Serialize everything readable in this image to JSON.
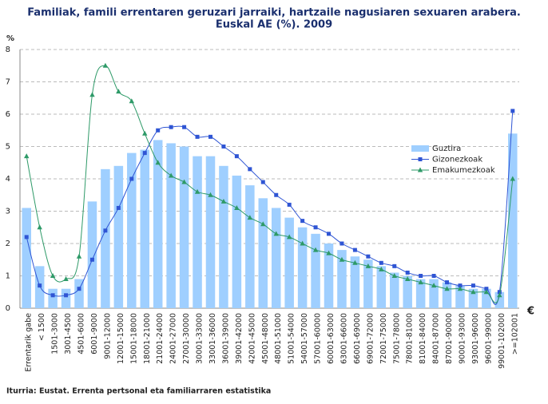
{
  "chart_data": {
    "type": "bar-line",
    "title": "Familiak, famili errentaren geruzari jarraiki, hartzaile nagusiaren sexuaren arabera.",
    "subtitle": "Euskal AE (%). 2009",
    "y_label": "%",
    "x_label": "€",
    "source": "Iturria: Eustat. Errenta pertsonal eta familiarraren estatistika",
    "categories": [
      "Errentarik gabe",
      "< 1500",
      "1501-3000",
      "3001-4500",
      "4501-6000",
      "6001-9000",
      "9001-12000",
      "12001-15000",
      "15001-18000",
      "18001-21000",
      "21001-24000",
      "24001-27000",
      "27001-30000",
      "30001-33000",
      "33001-36000",
      "36001-39000",
      "39001-42000",
      "42001-45000",
      "45001-48000",
      "48001-51000",
      "51001-54000",
      "54001-57000",
      "57001-60000",
      "60001-63000",
      "63001-66000",
      "66001-69000",
      "69001-72000",
      "72001-75000",
      "75001-78000",
      "78001-81000",
      "81001-84000",
      "84001-87000",
      "87001-90000",
      "90001-93000",
      "93001-96000",
      "96001-99000",
      "99001-102000",
      ">=102001"
    ],
    "series": [
      {
        "name": "Guztira",
        "color": "#9fcfff",
        "kind": "bar",
        "values": [
          3.1,
          1.3,
          0.6,
          0.6,
          0.9,
          3.3,
          4.3,
          4.4,
          4.8,
          4.9,
          5.2,
          5.1,
          5.0,
          4.7,
          4.7,
          4.4,
          4.1,
          3.8,
          3.4,
          3.1,
          2.8,
          2.5,
          2.3,
          2.0,
          1.8,
          1.6,
          1.5,
          1.3,
          1.1,
          1.0,
          0.9,
          0.9,
          0.8,
          0.7,
          0.6,
          0.6,
          0.5,
          5.4
        ]
      },
      {
        "name": "Gizonezkoak",
        "color": "#2f55d4",
        "kind": "line",
        "marker": "square",
        "values": [
          2.2,
          0.7,
          0.4,
          0.4,
          0.6,
          1.5,
          2.4,
          3.1,
          4.0,
          4.8,
          5.5,
          5.6,
          5.6,
          5.3,
          5.3,
          5.0,
          4.7,
          4.3,
          3.9,
          3.5,
          3.2,
          2.7,
          2.5,
          2.3,
          2.0,
          1.8,
          1.6,
          1.4,
          1.3,
          1.1,
          1.0,
          1.0,
          0.8,
          0.7,
          0.7,
          0.6,
          0.5,
          6.1
        ]
      },
      {
        "name": "Emakumezkoak",
        "color": "#2e9a68",
        "kind": "line",
        "marker": "triangle",
        "values": [
          4.7,
          2.5,
          1.0,
          0.9,
          1.6,
          6.6,
          7.5,
          6.7,
          6.4,
          5.4,
          4.5,
          4.1,
          3.9,
          3.6,
          3.5,
          3.3,
          3.1,
          2.8,
          2.6,
          2.3,
          2.2,
          2.0,
          1.8,
          1.7,
          1.5,
          1.4,
          1.3,
          1.2,
          1.0,
          0.9,
          0.8,
          0.7,
          0.6,
          0.6,
          0.5,
          0.5,
          0.4,
          4.0
        ]
      }
    ],
    "ylim": [
      0,
      8
    ],
    "yticks": [
      0,
      1,
      2,
      3,
      4,
      5,
      6,
      7,
      8
    ],
    "grid": true,
    "smooth": true
  }
}
